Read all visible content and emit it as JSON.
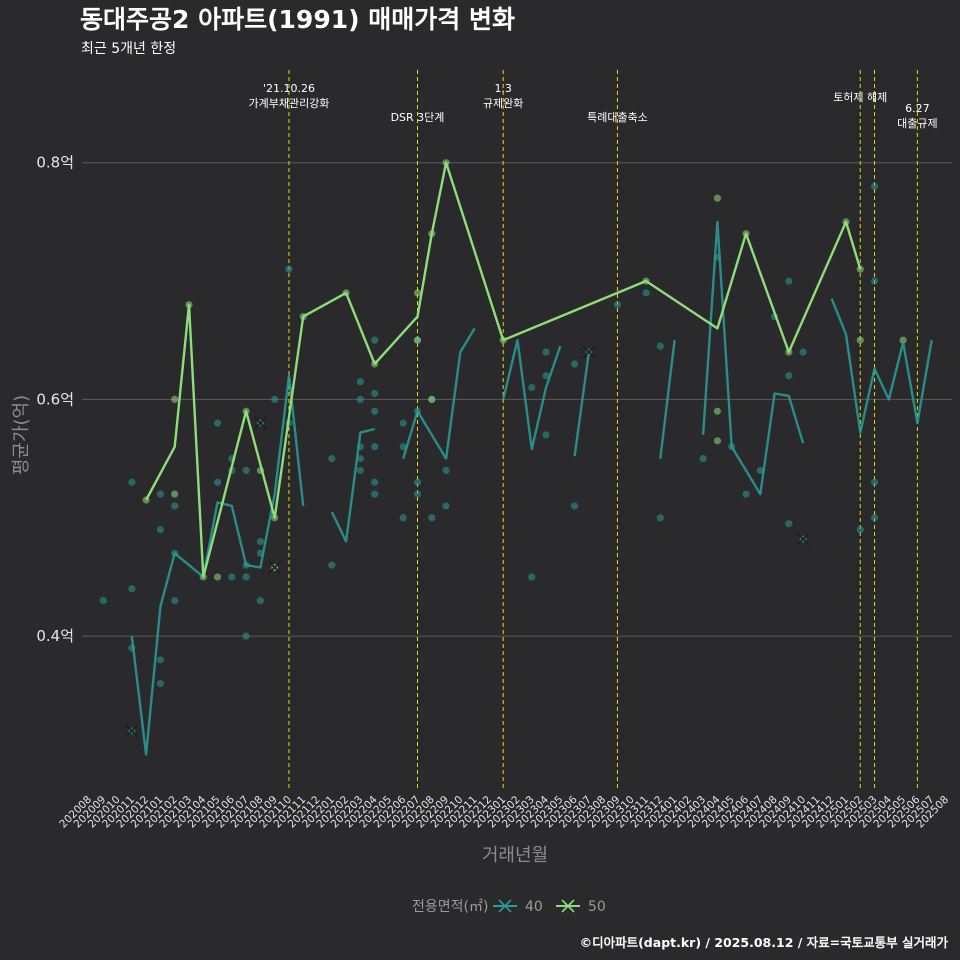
{
  "chart_data": {
    "type": "line",
    "title": "동대주공2 아파트(1991) 매매가격 변화",
    "subtitle": "최근 5개년 한정",
    "xlabel": "거래년월",
    "ylabel": "평균가(억)",
    "ylim": [
      0.27,
      0.88
    ],
    "y_ticks": [
      {
        "value": 0.4,
        "label": "0.4억"
      },
      {
        "value": 0.6,
        "label": "0.6억"
      },
      {
        "value": 0.8,
        "label": "0.8억"
      }
    ],
    "grid": true,
    "x_categories": [
      "202008",
      "202009",
      "202010",
      "202011",
      "202012",
      "202101",
      "202102",
      "202103",
      "202104",
      "202105",
      "202106",
      "202107",
      "202108",
      "202109",
      "202110",
      "202111",
      "202112",
      "202201",
      "202202",
      "202203",
      "202204",
      "202205",
      "202206",
      "202207",
      "202208",
      "202209",
      "202210",
      "202211",
      "202212",
      "202301",
      "202302",
      "202303",
      "202304",
      "202305",
      "202306",
      "202307",
      "202308",
      "202309",
      "202310",
      "202311",
      "202312",
      "202401",
      "202402",
      "202403",
      "202404",
      "202405",
      "202406",
      "202407",
      "202408",
      "202409",
      "202410",
      "202411",
      "202412",
      "202501",
      "202502",
      "202503",
      "202504",
      "202505",
      "202506",
      "202507",
      "202508"
    ],
    "annotations": [
      {
        "x": 14,
        "lines": [
          "'21.10.26",
          "가계부채관리강화"
        ]
      },
      {
        "x": 23,
        "lines": [
          "DSR 3단계"
        ]
      },
      {
        "x": 29,
        "lines": [
          "1.3",
          "규제완화"
        ]
      },
      {
        "x": 37,
        "lines": [
          "특례대출축소"
        ]
      },
      {
        "x": 54,
        "lines": [
          "토허제 해제"
        ]
      },
      {
        "x": 55,
        "lines": []
      },
      {
        "x": 58,
        "lines": [
          "6.27",
          "대출규제"
        ]
      }
    ],
    "legend_title": "전용면적(㎡)",
    "legend_position": "bottom",
    "series": [
      {
        "name": "40",
        "color": "#2a9d9a",
        "line": [
          [
            3,
            0.4
          ],
          [
            4,
            0.3
          ],
          [
            5,
            0.425
          ],
          [
            6,
            0.47
          ],
          [
            7,
            0.46
          ],
          [
            8,
            0.45
          ],
          [
            9,
            0.513
          ],
          [
            10,
            0.51
          ],
          [
            11,
            0.46
          ],
          [
            12,
            0.458
          ],
          [
            13,
            0.52
          ],
          [
            14,
            0.62
          ],
          [
            15,
            0.51
          ],
          null,
          [
            17,
            0.505
          ],
          [
            18,
            0.48
          ],
          [
            19,
            0.572
          ],
          [
            20,
            0.575
          ],
          null,
          [
            22,
            0.55
          ],
          [
            23,
            0.59
          ],
          [
            24,
            0.57
          ],
          [
            25,
            0.55
          ],
          [
            26,
            0.64
          ],
          [
            27,
            0.66
          ],
          null,
          [
            29,
            0.6
          ],
          [
            30,
            0.65
          ],
          [
            31,
            0.558
          ],
          [
            32,
            0.61
          ],
          [
            33,
            0.645
          ],
          null,
          [
            34,
            0.552
          ],
          [
            35,
            0.64
          ],
          null,
          [
            40,
            0.55
          ],
          [
            41,
            0.65
          ],
          null,
          [
            43,
            0.57
          ],
          [
            44,
            0.75
          ],
          [
            45,
            0.56
          ],
          [
            46,
            0.54
          ],
          [
            47,
            0.52
          ],
          [
            48,
            0.605
          ],
          [
            49,
            0.603
          ],
          [
            50,
            0.563
          ],
          null,
          [
            52,
            0.685
          ],
          [
            53,
            0.655
          ],
          [
            54,
            0.572
          ],
          [
            55,
            0.626
          ],
          [
            56,
            0.6
          ],
          [
            57,
            0.648
          ],
          [
            58,
            0.58
          ],
          [
            59,
            0.65
          ]
        ],
        "points": [
          [
            1,
            0.43
          ],
          [
            3,
            0.53
          ],
          [
            3,
            0.44
          ],
          [
            3,
            0.39
          ],
          [
            5,
            0.52
          ],
          [
            5,
            0.49
          ],
          [
            5,
            0.38
          ],
          [
            5,
            0.36
          ],
          [
            6,
            0.47
          ],
          [
            6,
            0.51
          ],
          [
            6,
            0.43
          ],
          [
            9,
            0.58
          ],
          [
            9,
            0.53
          ],
          [
            10,
            0.55
          ],
          [
            10,
            0.54
          ],
          [
            10,
            0.45
          ],
          [
            11,
            0.54
          ],
          [
            11,
            0.46
          ],
          [
            11,
            0.45
          ],
          [
            11,
            0.4
          ],
          [
            12,
            0.48
          ],
          [
            12,
            0.47
          ],
          [
            12,
            0.43
          ],
          [
            13,
            0.6
          ],
          [
            14,
            0.71
          ],
          [
            14,
            0.58
          ],
          [
            17,
            0.55
          ],
          [
            17,
            0.46
          ],
          [
            19,
            0.615
          ],
          [
            19,
            0.6
          ],
          [
            19,
            0.56
          ],
          [
            19,
            0.55
          ],
          [
            19,
            0.54
          ],
          [
            20,
            0.65
          ],
          [
            20,
            0.605
          ],
          [
            20,
            0.59
          ],
          [
            20,
            0.56
          ],
          [
            20,
            0.53
          ],
          [
            20,
            0.52
          ],
          [
            22,
            0.58
          ],
          [
            22,
            0.56
          ],
          [
            22,
            0.5
          ],
          [
            23,
            0.65
          ],
          [
            23,
            0.59
          ],
          [
            23,
            0.53
          ],
          [
            23,
            0.52
          ],
          [
            24,
            0.6
          ],
          [
            24,
            0.5
          ],
          [
            25,
            0.54
          ],
          [
            25,
            0.51
          ],
          [
            31,
            0.61
          ],
          [
            31,
            0.45
          ],
          [
            32,
            0.62
          ],
          [
            32,
            0.64
          ],
          [
            32,
            0.57
          ],
          [
            34,
            0.63
          ],
          [
            34,
            0.51
          ],
          [
            37,
            0.68
          ],
          [
            39,
            0.69
          ],
          [
            40,
            0.645
          ],
          [
            40,
            0.5
          ],
          [
            43,
            0.55
          ],
          [
            44,
            0.72
          ],
          [
            45,
            0.56
          ],
          [
            46,
            0.52
          ],
          [
            47,
            0.54
          ],
          [
            48,
            0.67
          ],
          [
            49,
            0.7
          ],
          [
            49,
            0.62
          ],
          [
            49,
            0.495
          ],
          [
            50,
            0.64
          ],
          [
            54,
            0.49
          ],
          [
            55,
            0.7
          ],
          [
            55,
            0.53
          ],
          [
            55,
            0.5
          ],
          [
            55,
            0.78
          ]
        ],
        "x_markers": [
          [
            3,
            0.32
          ],
          [
            12,
            0.58
          ],
          [
            35,
            0.64
          ],
          [
            50,
            0.482
          ]
        ]
      },
      {
        "name": "50",
        "color": "#8fdc7a",
        "line": [
          [
            4,
            0.515
          ],
          [
            6,
            0.56
          ],
          [
            7,
            0.68
          ],
          [
            8,
            0.45
          ],
          [
            11,
            0.59
          ],
          [
            13,
            0.5
          ],
          [
            15,
            0.67
          ],
          [
            18,
            0.69
          ],
          [
            20,
            0.63
          ],
          [
            23,
            0.67
          ],
          [
            24,
            0.74
          ],
          [
            25,
            0.8
          ],
          [
            29,
            0.65
          ],
          [
            39,
            0.7
          ],
          [
            44,
            0.66
          ],
          [
            46,
            0.74
          ],
          [
            49,
            0.64
          ],
          [
            53,
            0.75
          ],
          [
            54,
            0.71
          ]
        ],
        "points": [
          [
            4,
            0.515
          ],
          [
            6,
            0.6
          ],
          [
            6,
            0.52
          ],
          [
            7,
            0.68
          ],
          [
            8,
            0.45
          ],
          [
            9,
            0.45
          ],
          [
            11,
            0.59
          ],
          [
            12,
            0.54
          ],
          [
            13,
            0.5
          ],
          [
            15,
            0.67
          ],
          [
            18,
            0.69
          ],
          [
            20,
            0.63
          ],
          [
            23,
            0.69
          ],
          [
            23,
            0.65
          ],
          [
            24,
            0.74
          ],
          [
            24,
            0.6
          ],
          [
            25,
            0.8
          ],
          [
            29,
            0.65
          ],
          [
            39,
            0.7
          ],
          [
            44,
            0.77
          ],
          [
            44,
            0.59
          ],
          [
            44,
            0.565
          ],
          [
            46,
            0.74
          ],
          [
            49,
            0.64
          ],
          [
            53,
            0.75
          ],
          [
            54,
            0.71
          ],
          [
            54,
            0.65
          ],
          [
            57,
            0.65
          ]
        ],
        "x_markers": [
          [
            13,
            0.458
          ]
        ]
      }
    ]
  },
  "caption": "©디아파트(dapt.kr) / 2025.08.12 / 자료=국토교통부 실거래가"
}
